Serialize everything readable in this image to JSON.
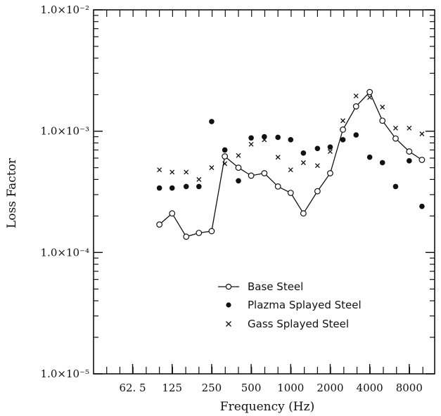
{
  "chart_data": {
    "type": "scatter",
    "title": "",
    "xlabel": "Frequency (Hz)",
    "ylabel": "Loss Factor",
    "x_scale": "log",
    "y_scale": "log",
    "xlim": [
      31.5,
      12500
    ],
    "ylim": [
      1e-05,
      0.01
    ],
    "x_tick_values": [
      62.5,
      125,
      250,
      500,
      1000,
      2000,
      4000,
      8000
    ],
    "x_tick_labels": [
      "62. 5",
      "125",
      "250",
      "500",
      "1000",
      "2000",
      "4000",
      "8000"
    ],
    "y_tick_values": [
      1e-05,
      0.0001,
      0.001,
      0.01
    ],
    "y_tick_labels": [
      "1.0×10⁻⁵",
      "1.0×10⁻⁴",
      "1.0×10⁻³",
      "1.0×10⁻²"
    ],
    "grid": false,
    "legend_position": "lower-right",
    "x": [
      100,
      125,
      160,
      200,
      250,
      315,
      400,
      500,
      630,
      800,
      1000,
      1250,
      1600,
      2000,
      2500,
      3150,
      4000,
      5000,
      6300,
      8000,
      10000
    ],
    "series": [
      {
        "name": "Base Steel",
        "marker": "open-circle-line",
        "values": [
          0.00017,
          0.00021,
          0.000135,
          0.000145,
          0.00015,
          0.00062,
          0.0005,
          0.00043,
          0.00045,
          0.00035,
          0.00031,
          0.00021,
          0.00032,
          0.00045,
          0.00103,
          0.0016,
          0.0021,
          0.00122,
          0.00087,
          0.00068,
          0.00058
        ]
      },
      {
        "name": "Plazma Splayed Steel",
        "marker": "filled-circle",
        "values": [
          0.00034,
          0.00034,
          0.00035,
          0.00035,
          0.0012,
          0.0007,
          0.00039,
          0.00088,
          0.0009,
          0.00089,
          0.00085,
          0.00066,
          0.00072,
          0.00074,
          0.00085,
          0.00093,
          0.00061,
          0.00055,
          0.00035,
          0.00057,
          0.00024
        ]
      },
      {
        "name": "Gass Splayed Steel",
        "marker": "cross",
        "values": [
          0.00048,
          0.00046,
          0.00046,
          0.0004,
          0.0005,
          0.00054,
          0.00063,
          0.00078,
          0.00085,
          0.00061,
          0.00048,
          0.00055,
          0.00052,
          0.00068,
          0.00122,
          0.00195,
          0.0019,
          0.00158,
          0.00106,
          0.00106,
          0.00095
        ]
      }
    ],
    "colors": {
      "ink": "#111111",
      "background": "#ffffff"
    }
  }
}
